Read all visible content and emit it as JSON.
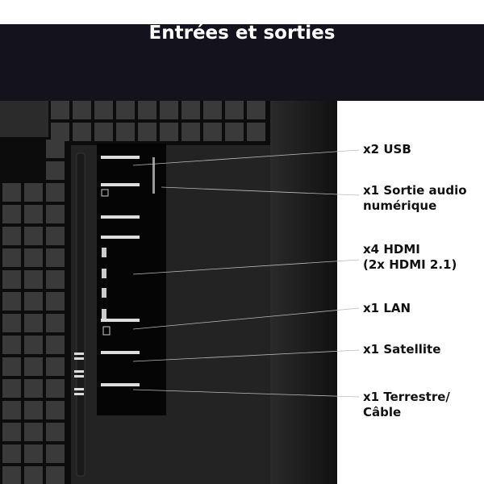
{
  "title": "Entrées et sorties",
  "labels": [
    {
      "lines": [
        "x2 USB"
      ]
    },
    {
      "lines": [
        "x1 Sortie audio",
        "numérique"
      ]
    },
    {
      "lines": [
        "x4 HDMI",
        "(2x HDMI 2.1)"
      ]
    },
    {
      "lines": [
        "x1 LAN"
      ]
    },
    {
      "lines": [
        "x1 Satellite"
      ]
    },
    {
      "lines": [
        "x1 Terrestre/",
        "Câble"
      ]
    }
  ],
  "colors": {
    "banner": "#13121d",
    "panel": "#050505",
    "tiles": "#3a3a3a",
    "label_text": "#111111"
  }
}
